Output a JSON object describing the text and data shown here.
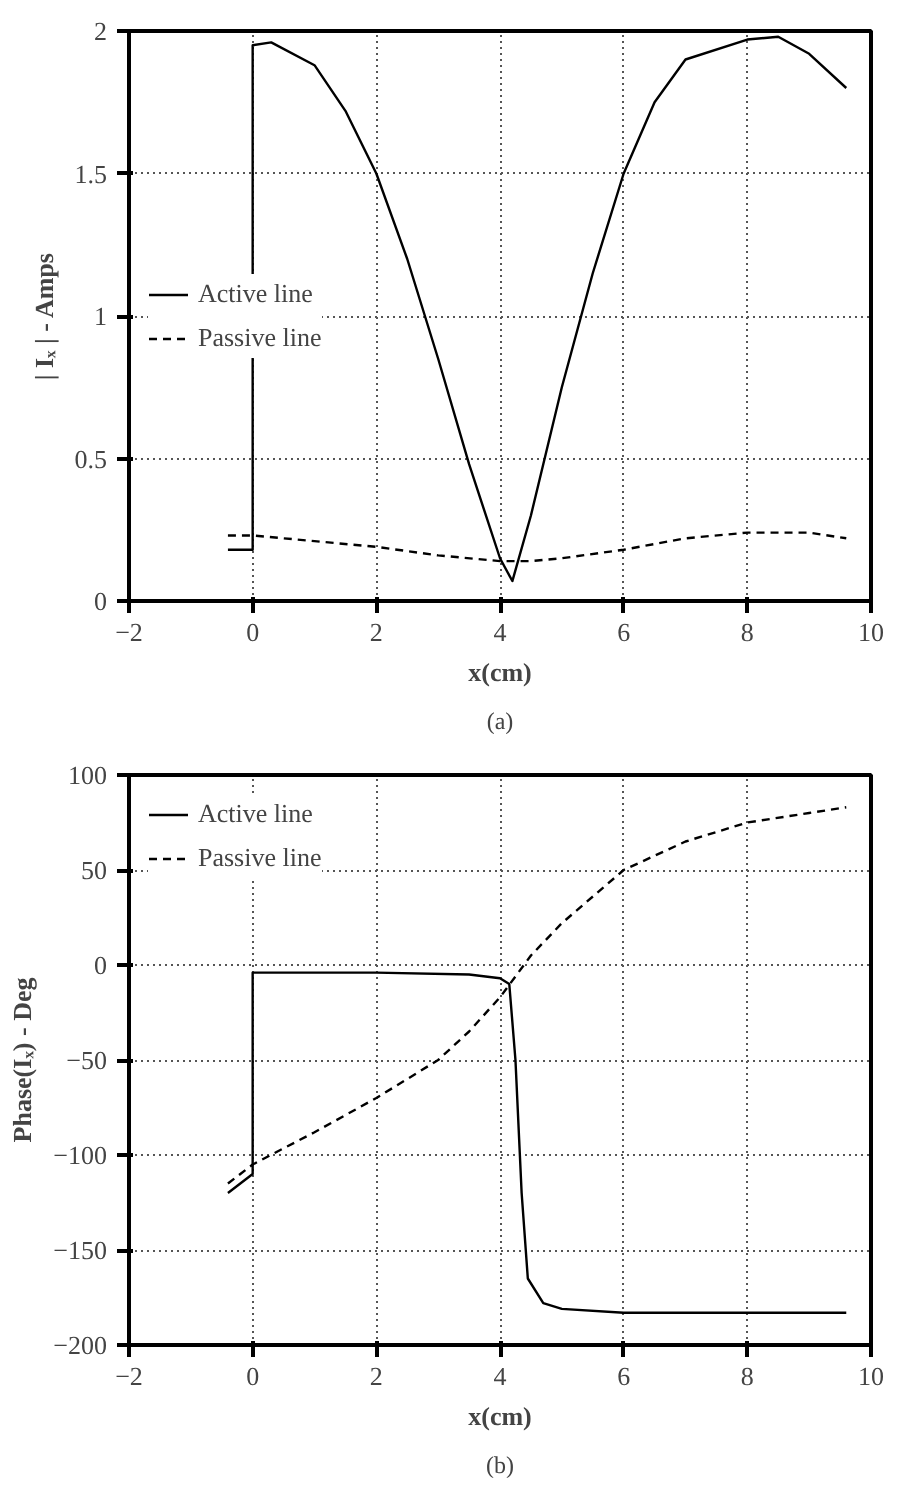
{
  "chart_data": [
    {
      "type": "line",
      "title": "(a)",
      "xlabel": "x(cm)",
      "ylabel": "| Iₓ | - Amps",
      "xlim": [
        -2,
        10
      ],
      "ylim": [
        0,
        2
      ],
      "xticks": [
        -2,
        0,
        2,
        4,
        6,
        8,
        10
      ],
      "yticks": [
        0,
        0.5,
        1,
        1.5,
        2
      ],
      "grid": true,
      "legend": "left",
      "series": [
        {
          "name": "Active line",
          "color": "#000000",
          "line_style": "solid",
          "x": [
            -0.4,
            0,
            0,
            0.3,
            1,
            1.5,
            2,
            2.5,
            3,
            3.5,
            4,
            4.2,
            4.5,
            5,
            5.5,
            6,
            6.5,
            7,
            8,
            8.5,
            9,
            9.6
          ],
          "values": [
            0.18,
            0.18,
            1.95,
            1.96,
            1.88,
            1.72,
            1.5,
            1.2,
            0.85,
            0.48,
            0.15,
            0.07,
            0.3,
            0.75,
            1.15,
            1.5,
            1.75,
            1.9,
            1.97,
            1.98,
            1.92,
            1.8
          ]
        },
        {
          "name": "Passive line",
          "color": "#000000",
          "line_style": "dashed",
          "x": [
            -0.4,
            0,
            1,
            2,
            3,
            4,
            4.5,
            5,
            6,
            7,
            8,
            9,
            9.6
          ],
          "values": [
            0.23,
            0.23,
            0.21,
            0.19,
            0.16,
            0.14,
            0.14,
            0.15,
            0.18,
            0.22,
            0.24,
            0.24,
            0.22
          ]
        }
      ]
    },
    {
      "type": "line",
      "title": "(b)",
      "xlabel": "x(cm)",
      "ylabel": "Phase(Iₓ) - Deg",
      "xlim": [
        -2,
        10
      ],
      "ylim": [
        -200,
        100
      ],
      "xticks": [
        -2,
        0,
        2,
        4,
        6,
        8,
        10
      ],
      "yticks": [
        -200,
        -150,
        -100,
        -50,
        0,
        50,
        100
      ],
      "grid": true,
      "legend": "top left",
      "series": [
        {
          "name": "Active line",
          "color": "#000000",
          "line_style": "solid",
          "x": [
            -0.4,
            0,
            0,
            2,
            3.5,
            4,
            4.15,
            4.25,
            4.35,
            4.45,
            4.7,
            5,
            6,
            8,
            9.6
          ],
          "values": [
            -120,
            -110,
            -4,
            -4,
            -5,
            -7,
            -10,
            -50,
            -120,
            -165,
            -178,
            -181,
            -183,
            -183,
            -183
          ]
        },
        {
          "name": "Passive line",
          "color": "#000000",
          "line_style": "dashed",
          "x": [
            -0.4,
            0,
            1,
            2,
            3,
            3.5,
            4,
            4.5,
            5,
            6,
            7,
            8,
            9,
            9.6
          ],
          "values": [
            -115,
            -105,
            -88,
            -70,
            -50,
            -35,
            -17,
            5,
            22,
            50,
            65,
            75,
            80,
            83
          ]
        }
      ]
    }
  ]
}
